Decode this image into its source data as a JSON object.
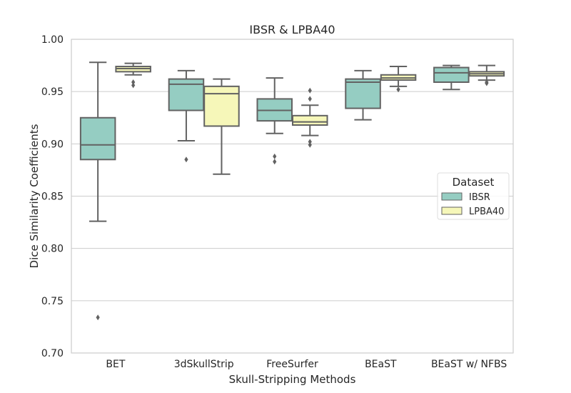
{
  "chart_data": {
    "type": "boxplot",
    "title": "IBSR & LPBA40",
    "xlabel": "Skull-Stripping Methods",
    "ylabel": "Dice Similarity Coefficients",
    "ylim": [
      0.7,
      1.0
    ],
    "yticks": [
      "0.70",
      "0.75",
      "0.80",
      "0.85",
      "0.90",
      "0.95",
      "1.00"
    ],
    "grid": true,
    "legend": {
      "title": "Dataset",
      "placement": "center-right"
    },
    "categories": [
      "BET",
      "3dSkullStrip",
      "FreeSurfer",
      "BEaST",
      "BEaST w/ NFBS"
    ],
    "series": [
      {
        "name": "IBSR",
        "color": "#95cdc2",
        "boxes": [
          {
            "q1": 0.885,
            "median": 0.899,
            "q3": 0.925,
            "whislo": 0.826,
            "whishi": 0.978,
            "fliers": [
              0.734
            ]
          },
          {
            "q1": 0.932,
            "median": 0.957,
            "q3": 0.962,
            "whislo": 0.903,
            "whishi": 0.97,
            "fliers": [
              0.885
            ]
          },
          {
            "q1": 0.922,
            "median": 0.932,
            "q3": 0.943,
            "whislo": 0.91,
            "whishi": 0.963,
            "fliers": [
              0.888,
              0.883
            ]
          },
          {
            "q1": 0.934,
            "median": 0.959,
            "q3": 0.962,
            "whislo": 0.923,
            "whishi": 0.97,
            "fliers": []
          },
          {
            "q1": 0.959,
            "median": 0.968,
            "q3": 0.973,
            "whislo": 0.952,
            "whishi": 0.975,
            "fliers": []
          }
        ]
      },
      {
        "name": "LPBA40",
        "color": "#f6f7b9",
        "boxes": [
          {
            "q1": 0.969,
            "median": 0.972,
            "q3": 0.974,
            "whislo": 0.966,
            "whishi": 0.977,
            "fliers": [
              0.959,
              0.956
            ]
          },
          {
            "q1": 0.917,
            "median": 0.948,
            "q3": 0.955,
            "whislo": 0.871,
            "whishi": 0.962,
            "fliers": []
          },
          {
            "q1": 0.918,
            "median": 0.921,
            "q3": 0.927,
            "whislo": 0.908,
            "whishi": 0.937,
            "fliers": [
              0.951,
              0.943,
              0.902,
              0.899
            ]
          },
          {
            "q1": 0.961,
            "median": 0.963,
            "q3": 0.966,
            "whislo": 0.955,
            "whishi": 0.974,
            "fliers": [
              0.952
            ]
          },
          {
            "q1": 0.965,
            "median": 0.967,
            "q3": 0.969,
            "whislo": 0.961,
            "whishi": 0.975,
            "fliers": [
              0.959,
              0.958
            ]
          }
        ]
      }
    ]
  }
}
